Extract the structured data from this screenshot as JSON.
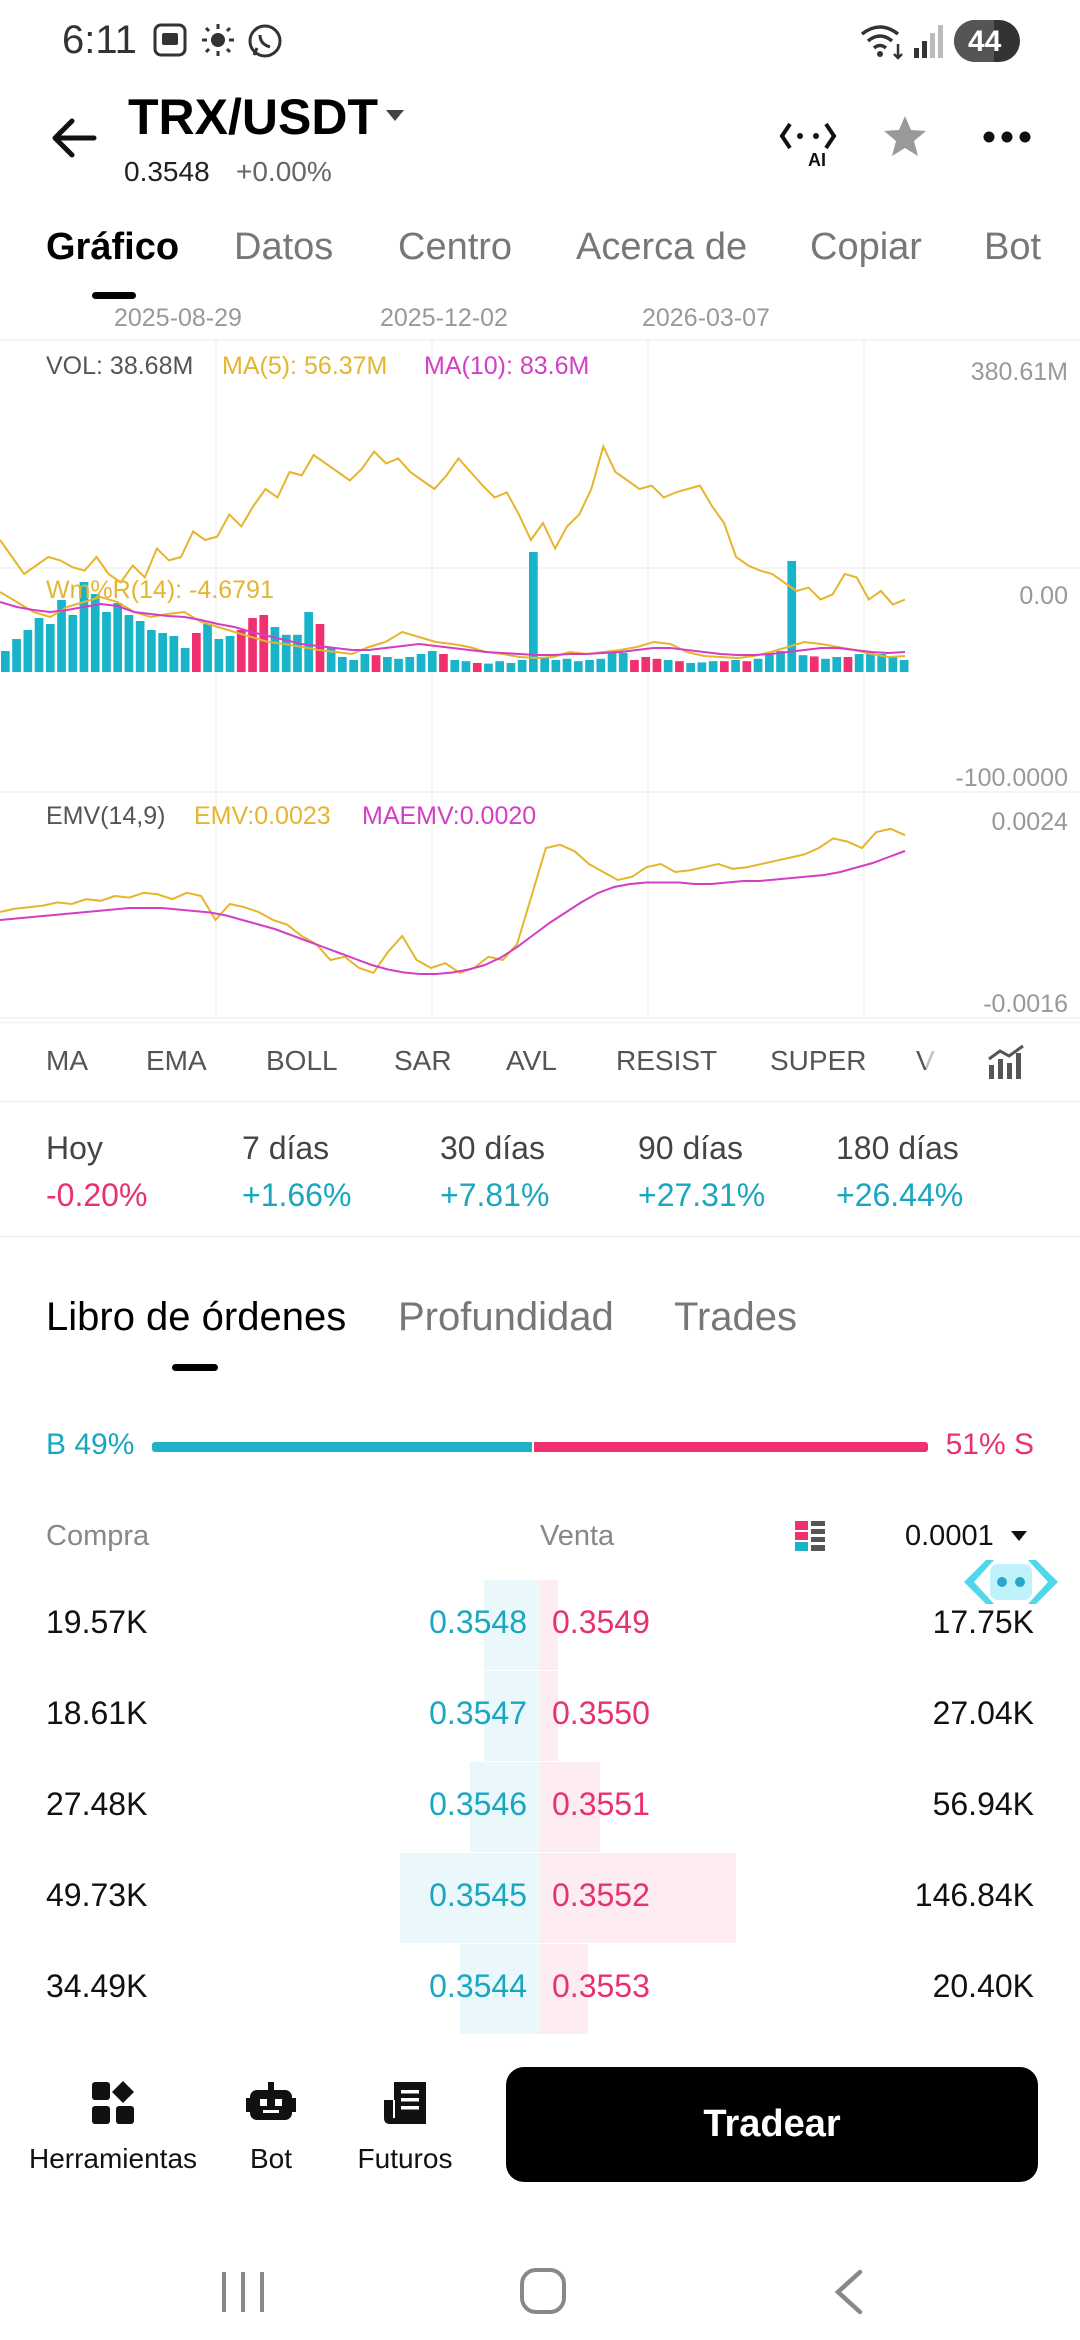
{
  "status_bar": {
    "time": "6:11",
    "battery": "44"
  },
  "header": {
    "title": "TRX/USDT",
    "price": "0.3548",
    "change": "+0.00%",
    "ai_label": "AI"
  },
  "top_tabs": [
    "Gráfico",
    "Datos",
    "Centro",
    "Acerca de",
    "Copiar",
    "Bot"
  ],
  "chart": {
    "dates": [
      "2025-08-29",
      "2025-12-02",
      "2026-03-07"
    ],
    "volume": {
      "vol": "VOL: 38.68M",
      "ma5": "MA(5): 56.37M",
      "ma10": "MA(10): 83.6M",
      "max": "380.61M"
    },
    "wr": {
      "label": "Wm%R(14): -4.6791",
      "top": "0.00",
      "bottom": "-100.0000"
    },
    "emv": {
      "name": "EMV(14,9)",
      "emv": "EMV:0.0023",
      "maemv": "MAEMV:0.0020",
      "top": "0.0024",
      "bottom": "-0.0016"
    },
    "colors": {
      "up": "#1ab4ca",
      "down": "#f0306f",
      "yellow": "#e5b52e",
      "magenta": "#d43ec4"
    }
  },
  "indicators": [
    "MA",
    "EMA",
    "BOLL",
    "SAR",
    "AVL",
    "RESIST",
    "SUPER",
    "V"
  ],
  "performance": [
    {
      "label": "Hoy",
      "value": "-0.20%",
      "dir": "down"
    },
    {
      "label": "7 días",
      "value": "+1.66%",
      "dir": "up"
    },
    {
      "label": "30 días",
      "value": "+7.81%",
      "dir": "up"
    },
    {
      "label": "90 días",
      "value": "+27.31%",
      "dir": "up"
    },
    {
      "label": "180 días",
      "value": "+26.44%",
      "dir": "up"
    }
  ],
  "orderbook_tabs": [
    "Libro de órdenes",
    "Profundidad",
    "Trades"
  ],
  "ratio": {
    "buy_label": "B 49%",
    "sell_label": "51% S",
    "buy_fraction": 0.49
  },
  "orderbook_header": {
    "buy": "Compra",
    "sell": "Venta",
    "precision": "0.0001"
  },
  "orderbook": [
    {
      "buy_qty": "19.57K",
      "buy_price": "0.3548",
      "sell_price": "0.3549",
      "sell_qty": "17.75K"
    },
    {
      "buy_qty": "18.61K",
      "buy_price": "0.3547",
      "sell_price": "0.3550",
      "sell_qty": "27.04K"
    },
    {
      "buy_qty": "27.48K",
      "buy_price": "0.3546",
      "sell_price": "0.3551",
      "sell_qty": "56.94K"
    },
    {
      "buy_qty": "49.73K",
      "buy_price": "0.3545",
      "sell_price": "0.3552",
      "sell_qty": "146.84K"
    },
    {
      "buy_qty": "34.49K",
      "buy_price": "0.3544",
      "sell_price": "0.3553",
      "sell_qty": "20.40K"
    }
  ],
  "bottom_bar": {
    "tools": "Herramientas",
    "bot": "Bot",
    "futures": "Futuros",
    "trade": "Tradear"
  }
}
